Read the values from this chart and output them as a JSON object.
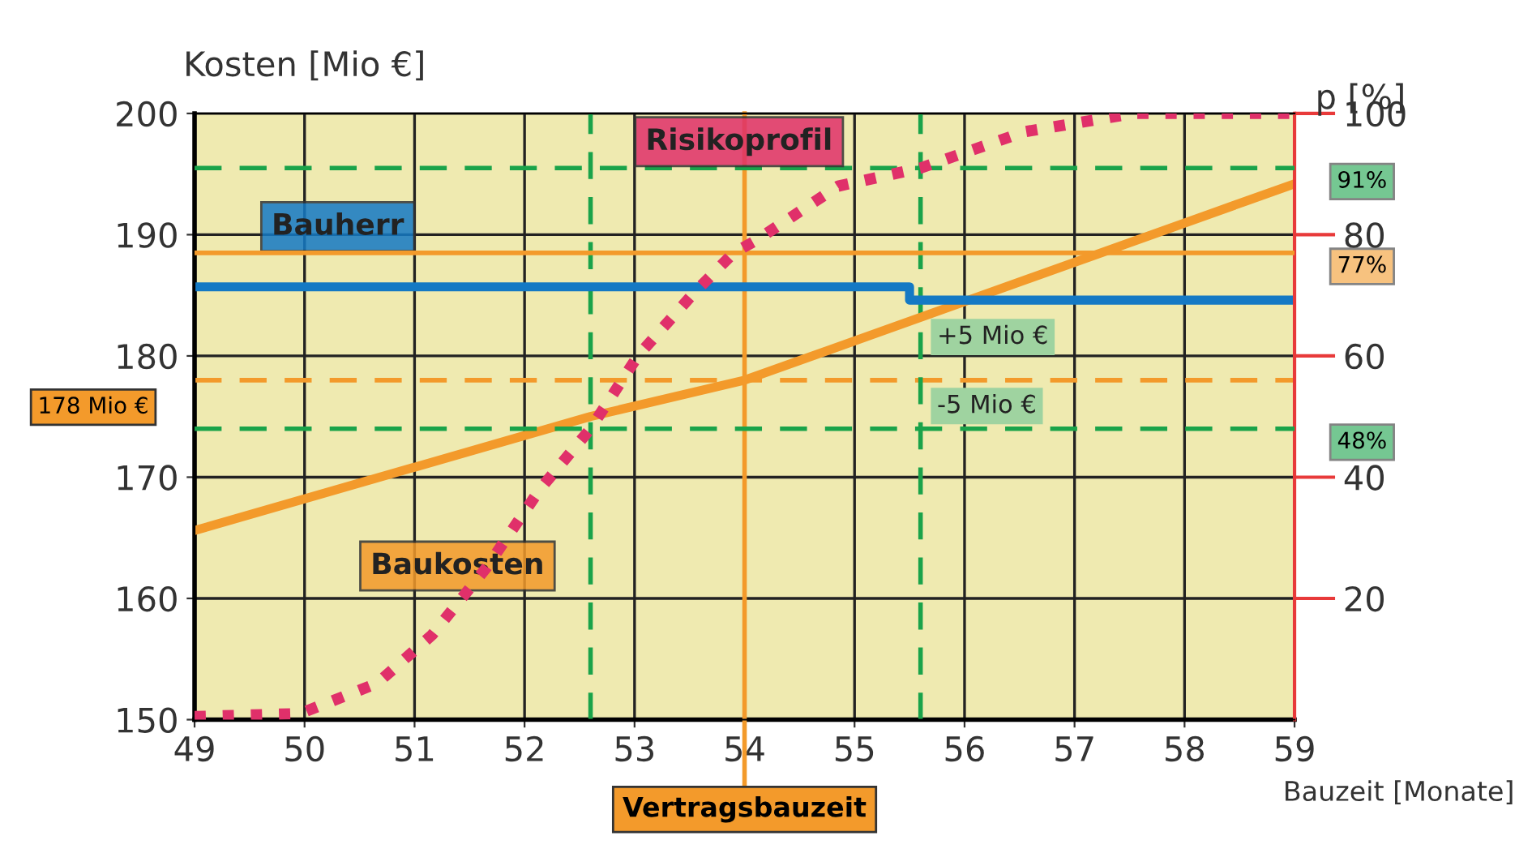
{
  "chart_data": {
    "type": "line",
    "xlabel": "Bauzeit [Monate]",
    "ylabel": "Kosten [Mio €]",
    "y2label": "p [%]",
    "xlim": [
      49,
      59
    ],
    "xticks": [
      49,
      50,
      51,
      52,
      53,
      54,
      55,
      56,
      57,
      58,
      59
    ],
    "ylim": [
      150,
      200
    ],
    "yticks": [
      150,
      160,
      170,
      180,
      190,
      200
    ],
    "y2lim": [
      0,
      100
    ],
    "y2ticks": [
      20,
      40,
      60,
      80,
      100
    ],
    "grid": true,
    "marker": "none",
    "series": [
      {
        "name": "Baukosten",
        "color": "#f39a2b",
        "line_style": "solid",
        "x": [
          49,
          52.6,
          54,
          59
        ],
        "values": [
          165.6,
          175,
          178,
          194.2
        ]
      },
      {
        "name": "Bauherr",
        "color": "#1479c4",
        "line_style": "solid",
        "x": [
          49,
          55.5,
          55.5,
          59
        ],
        "values": [
          185.7,
          185.7,
          184.6,
          184.6
        ]
      },
      {
        "name": "Risikoprofil",
        "color": "#e0306a",
        "line_style": "dotted",
        "axis": "y2",
        "x": [
          49,
          49.96,
          50.66,
          51.16,
          51.65,
          52.14,
          52.6,
          53.03,
          53.52,
          53.9,
          54.1,
          54.85,
          55.6,
          56.55,
          57.54,
          59
        ],
        "values": [
          0.5,
          1,
          6,
          14,
          25,
          38,
          48,
          60,
          70,
          77,
          79,
          88,
          91,
          97,
          100,
          100
        ]
      }
    ],
    "ref_lines": [
      {
        "axis": "x",
        "value": 54,
        "label": "Vertragsbauzeit",
        "color": "#f39a2b",
        "line_style": "solid"
      },
      {
        "axis": "y",
        "value": 178,
        "label": "178 Mio €",
        "color": "#f39a2b",
        "line_style": "dashed"
      },
      {
        "axis": "y2",
        "value": 77,
        "label": "77%",
        "color": "#f39a2b",
        "line_style": "solid"
      },
      {
        "axis": "y2",
        "value": 91,
        "label": "91%",
        "color": "#1aa34a",
        "line_style": "dashed"
      },
      {
        "axis": "y2",
        "value": 48,
        "label": "48%",
        "color": "#1aa34a",
        "line_style": "dashed"
      },
      {
        "axis": "x",
        "value": 52.6,
        "color": "#1aa34a",
        "line_style": "dashed"
      },
      {
        "axis": "x",
        "value": 55.6,
        "color": "#1aa34a",
        "line_style": "dashed"
      }
    ],
    "annotations": [
      "+5 Mio €",
      "-5 Mio €"
    ]
  }
}
